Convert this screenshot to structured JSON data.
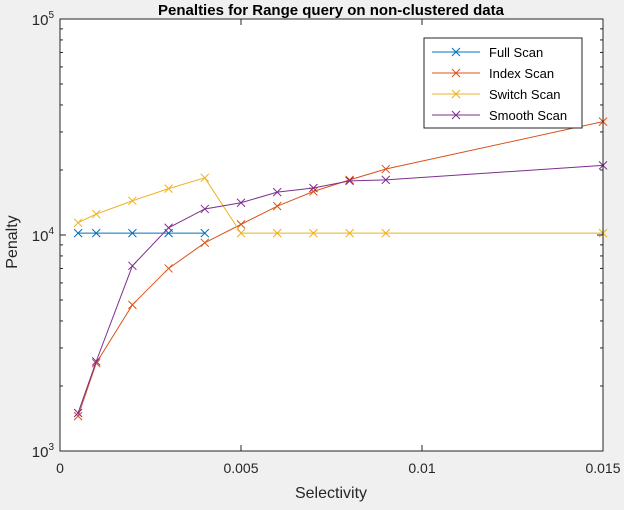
{
  "chart_data": {
    "type": "line",
    "title": "Penalties for Range query on non-clustered data",
    "xlabel": "Selectivity",
    "ylabel": "Penalty",
    "xlim": [
      0,
      0.015
    ],
    "ylim": [
      1000,
      100000
    ],
    "y_scale": "log",
    "grid": false,
    "legend_position": "top-right",
    "x_ticks": [
      {
        "value": 0,
        "label": "0"
      },
      {
        "value": 0.005,
        "label": "0.005"
      },
      {
        "value": 0.01,
        "label": "0.01"
      },
      {
        "value": 0.015,
        "label": "0.015"
      }
    ],
    "y_ticks": [
      {
        "value": 1000,
        "base": "10",
        "exp": "3"
      },
      {
        "value": 10000,
        "base": "10",
        "exp": "4"
      },
      {
        "value": 100000,
        "base": "10",
        "exp": "5"
      }
    ],
    "series": [
      {
        "name": "Full Scan",
        "color": "#0072bd",
        "marker": "x",
        "points": [
          [
            0.0005,
            10200
          ],
          [
            0.001,
            10200
          ],
          [
            0.002,
            10200
          ],
          [
            0.003,
            10200
          ],
          [
            0.004,
            10200
          ]
        ]
      },
      {
        "name": "Index Scan",
        "color": "#d95319",
        "marker": "x",
        "points": [
          [
            0.0005,
            1450
          ],
          [
            0.001,
            2550
          ],
          [
            0.002,
            4750
          ],
          [
            0.003,
            7000
          ],
          [
            0.004,
            9200
          ],
          [
            0.005,
            11200
          ],
          [
            0.006,
            13600
          ],
          [
            0.007,
            15900
          ],
          [
            0.008,
            18000
          ],
          [
            0.009,
            20200
          ],
          [
            0.015,
            33500
          ]
        ]
      },
      {
        "name": "Switch Scan",
        "color": "#edb120",
        "marker": "x",
        "points": [
          [
            0.0005,
            11400
          ],
          [
            0.001,
            12500
          ],
          [
            0.002,
            14400
          ],
          [
            0.003,
            16400
          ],
          [
            0.004,
            18400
          ],
          [
            0.005,
            10200
          ],
          [
            0.006,
            10200
          ],
          [
            0.007,
            10200
          ],
          [
            0.008,
            10200
          ],
          [
            0.009,
            10200
          ],
          [
            0.015,
            10200
          ]
        ]
      },
      {
        "name": "Smooth Scan",
        "color": "#7e2f8e",
        "marker": "x",
        "points": [
          [
            0.0005,
            1500
          ],
          [
            0.001,
            2600
          ],
          [
            0.002,
            7200
          ],
          [
            0.003,
            10800
          ],
          [
            0.004,
            13200
          ],
          [
            0.005,
            14100
          ],
          [
            0.006,
            15800
          ],
          [
            0.007,
            16500
          ],
          [
            0.008,
            17800
          ],
          [
            0.009,
            18000
          ],
          [
            0.015,
            21000
          ]
        ]
      }
    ]
  }
}
